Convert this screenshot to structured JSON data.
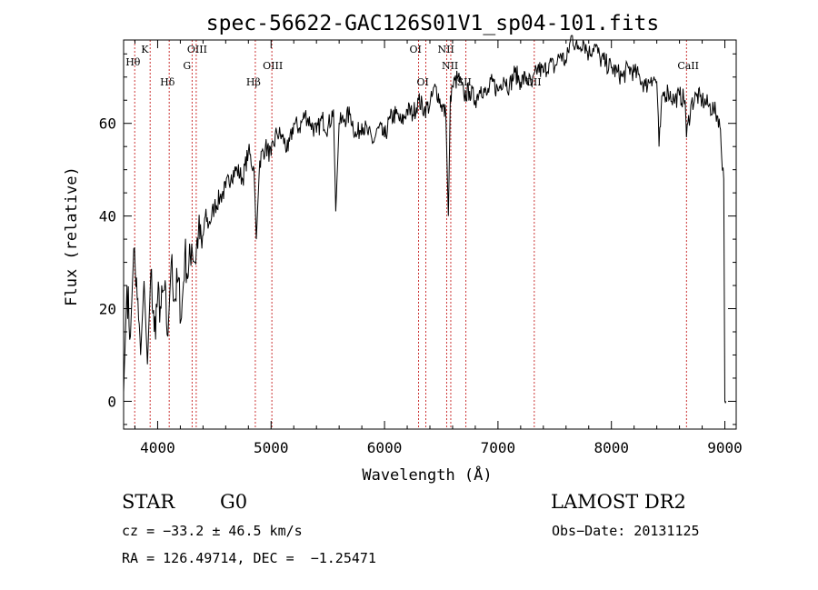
{
  "chart_data": {
    "type": "line",
    "title": "spec-56622-GAC126S01V1_sp04-101.fits",
    "xlabel": "Wavelength (Å)",
    "ylabel": "Flux (relative)",
    "xlim": [
      3700,
      9100
    ],
    "ylim": [
      -6,
      78
    ],
    "xticks": [
      4000,
      5000,
      6000,
      7000,
      8000,
      9000
    ],
    "yticks": [
      0,
      20,
      40,
      60
    ],
    "grid": false,
    "line_color": "#000000",
    "marker_color": "#cc3333",
    "spectrum": {
      "x": [
        3700,
        3730,
        3760,
        3790,
        3820,
        3850,
        3880,
        3910,
        3940,
        3970,
        4000,
        4030,
        4060,
        4090,
        4120,
        4150,
        4180,
        4210,
        4240,
        4270,
        4300,
        4330,
        4360,
        4390,
        4420,
        4450,
        4500,
        4550,
        4600,
        4650,
        4700,
        4750,
        4800,
        4850,
        4870,
        4900,
        4950,
        5000,
        5050,
        5100,
        5150,
        5200,
        5250,
        5300,
        5350,
        5400,
        5450,
        5500,
        5550,
        5570,
        5600,
        5650,
        5700,
        5750,
        5800,
        5850,
        5900,
        5950,
        6000,
        6050,
        6100,
        6150,
        6200,
        6250,
        6300,
        6350,
        6400,
        6450,
        6500,
        6540,
        6563,
        6580,
        6600,
        6650,
        6700,
        6750,
        6800,
        6850,
        6900,
        6950,
        7000,
        7050,
        7100,
        7150,
        7200,
        7250,
        7300,
        7350,
        7400,
        7450,
        7500,
        7550,
        7600,
        7650,
        7700,
        7750,
        7800,
        7850,
        7900,
        7950,
        8000,
        8050,
        8100,
        8150,
        8200,
        8250,
        8300,
        8350,
        8400,
        8420,
        8450,
        8500,
        8550,
        8600,
        8650,
        8662,
        8700,
        8750,
        8800,
        8850,
        8900,
        8950,
        8990,
        9000,
        9010
      ],
      "y": [
        2,
        25,
        14,
        33,
        22,
        10,
        26,
        8,
        28,
        15,
        22,
        20,
        24,
        14,
        30,
        22,
        26,
        18,
        32,
        27,
        34,
        30,
        37,
        33,
        40,
        38,
        42,
        44,
        46,
        49,
        50,
        48,
        54,
        50,
        35,
        52,
        55,
        53,
        58,
        57,
        54,
        60,
        59,
        62,
        60,
        58,
        61,
        59,
        63,
        41,
        60,
        61,
        62,
        57,
        60,
        58,
        56,
        59,
        57,
        61,
        62,
        60,
        63,
        62,
        65,
        63,
        64,
        68,
        64,
        62,
        40,
        66,
        68,
        70,
        66,
        67,
        65,
        68,
        66,
        69,
        67,
        70,
        68,
        71,
        69,
        70,
        68,
        72,
        71,
        73,
        72,
        75,
        73,
        79,
        76,
        78,
        75,
        77,
        74,
        73,
        72,
        71,
        70,
        72,
        71,
        70,
        68,
        70,
        69,
        55,
        66,
        67,
        65,
        66,
        65,
        57,
        64,
        66,
        65,
        64,
        63,
        61,
        48,
        0,
        0
      ]
    },
    "lines": [
      {
        "name": "Hθ",
        "wavelength": 3798
      },
      {
        "name": "K",
        "wavelength": 3934
      },
      {
        "name": "Hδ",
        "wavelength": 4102
      },
      {
        "name": "OIII",
        "wavelength": 4340
      },
      {
        "name": "G",
        "wavelength": 4304
      },
      {
        "name": "Hβ",
        "wavelength": 4861
      },
      {
        "name": "OIII",
        "wavelength": 5007
      },
      {
        "name": "OI",
        "wavelength": 6300
      },
      {
        "name": "OI",
        "wavelength": 6364
      },
      {
        "name": "NII",
        "wavelength": 6548
      },
      {
        "name": "NII",
        "wavelength": 6584
      },
      {
        "name": "SII",
        "wavelength": 6717
      },
      {
        "name": "OII",
        "wavelength": 7320
      },
      {
        "name": "CaII",
        "wavelength": 8662
      }
    ]
  },
  "info": {
    "class": "STAR",
    "subclass": "G0",
    "survey": "LAMOST DR2",
    "cz": "cz = −33.2 ± 46.5 km/s",
    "obs_date": "Obs−Date: 20131125",
    "coords": "RA = 126.49714, DEC =  −1.25471"
  }
}
